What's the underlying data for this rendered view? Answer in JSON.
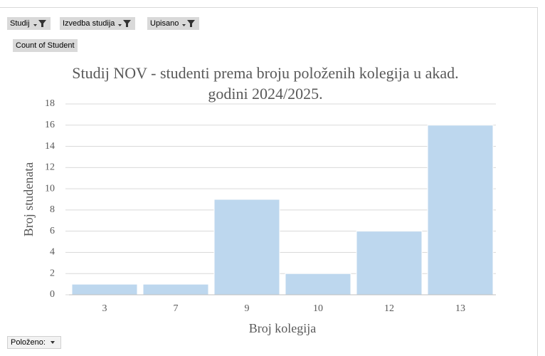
{
  "controls": {
    "filters": [
      "Studij",
      "Izvedba studija",
      "Upisano"
    ],
    "value_field": "Count of Student",
    "axis_field": "Položeno:"
  },
  "chart_data": {
    "type": "bar",
    "title": "Studij NOV - studenti prema broju položenih kolegija u akad. godini 2024/2025.",
    "x_label": "Broj kolegija",
    "y_label": "Broj studenata",
    "categories": [
      "3",
      "7",
      "9",
      "10",
      "12",
      "13"
    ],
    "values": [
      1,
      1,
      9,
      2,
      6,
      16
    ],
    "color": "#bdd7ee",
    "ylim": [
      0,
      18
    ],
    "yticks": [
      0,
      2,
      4,
      6,
      8,
      10,
      12,
      14,
      16,
      18
    ],
    "grid": true
  }
}
